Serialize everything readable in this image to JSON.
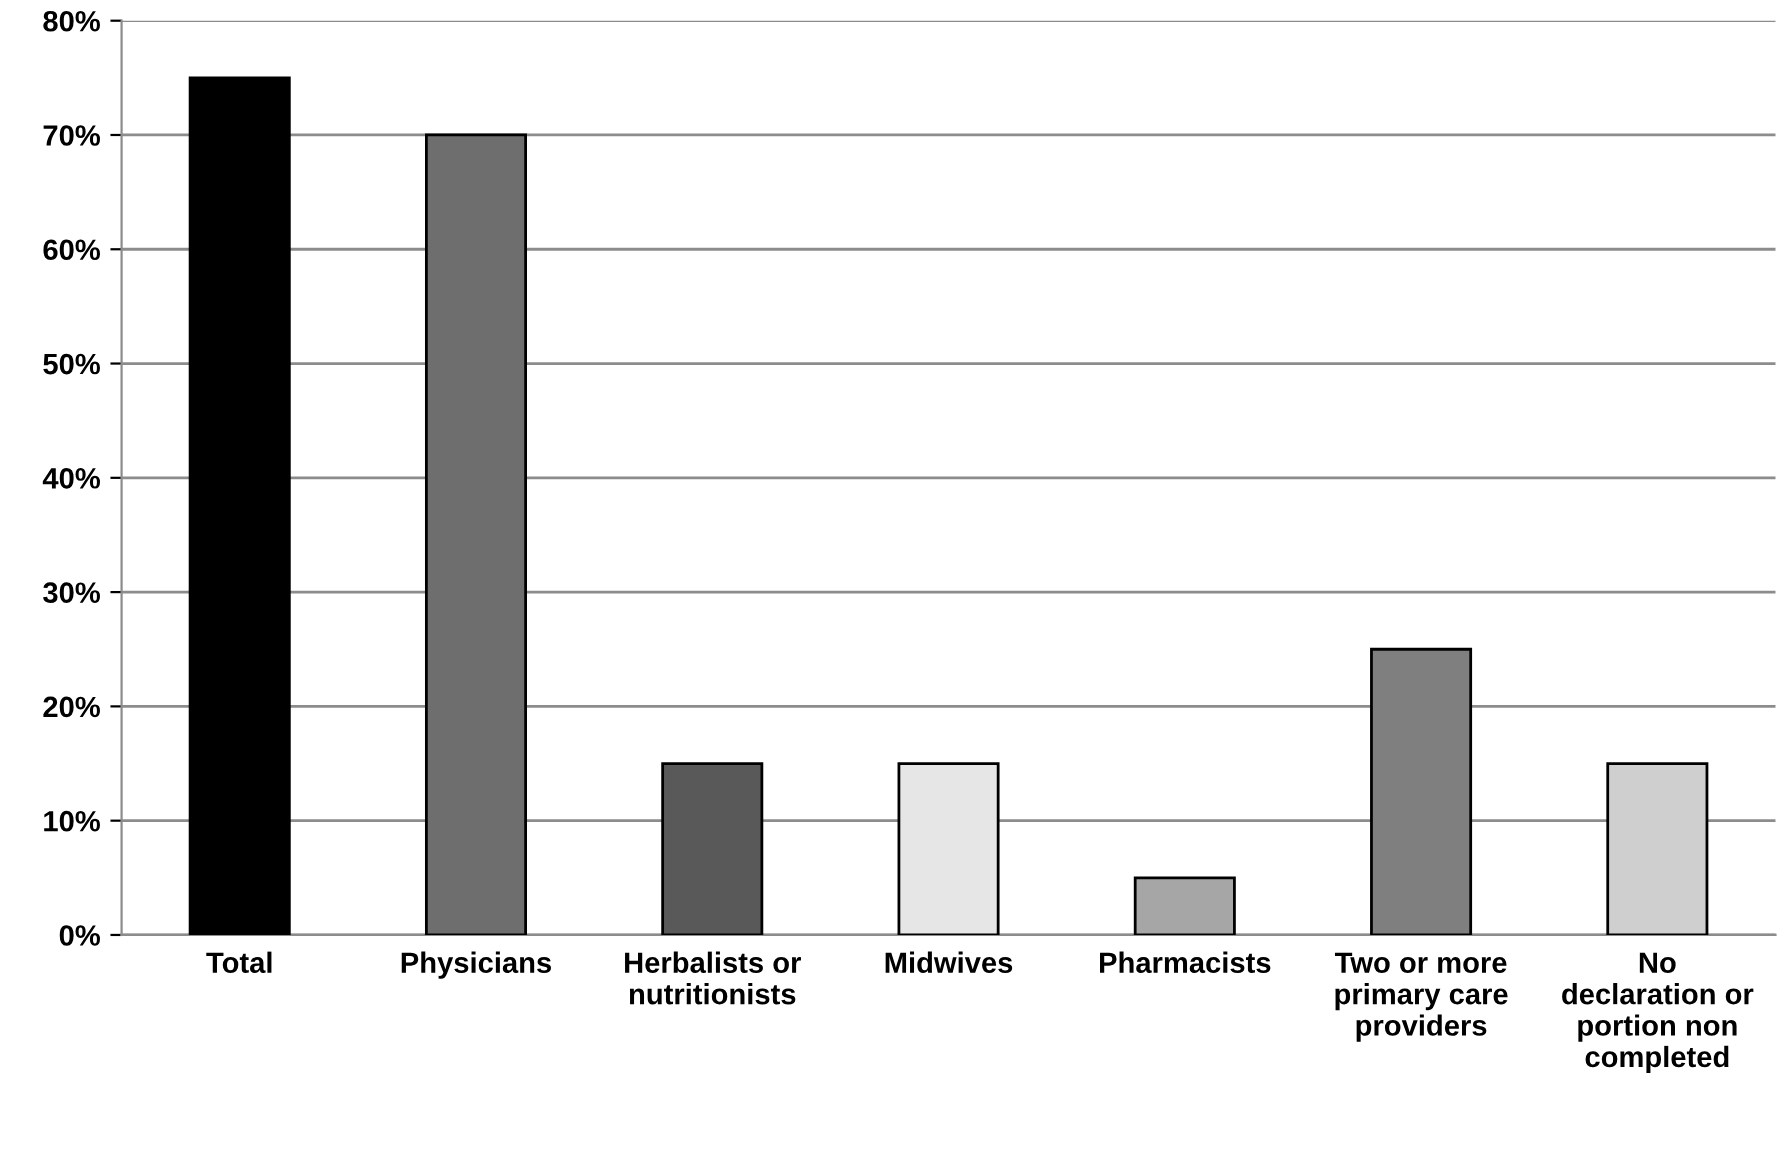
{
  "chart_data": {
    "type": "bar",
    "categories": [
      "Total",
      "Physicians",
      "Herbalists or\nnutritionists",
      "Midwives",
      "Pharmacists",
      "Two or more\nprimary care\nproviders",
      "No\ndeclaration or\nportion non\ncompleted"
    ],
    "values": [
      75,
      70,
      15,
      15,
      5,
      25,
      15
    ],
    "colors": [
      "#000000",
      "#6e6e6e",
      "#595959",
      "#e6e6e6",
      "#a6a6a6",
      "#7f7f7f",
      "#cfcfcf"
    ],
    "ylim": [
      0,
      80
    ],
    "yticks": [
      {
        "value": 0,
        "label": "0%"
      },
      {
        "value": 10,
        "label": "10%"
      },
      {
        "value": 20,
        "label": "20%"
      },
      {
        "value": 30,
        "label": "30%"
      },
      {
        "value": 40,
        "label": "40%"
      },
      {
        "value": 50,
        "label": "50%"
      },
      {
        "value": 60,
        "label": "60%"
      },
      {
        "value": 70,
        "label": "70%"
      },
      {
        "value": 80,
        "label": "80%"
      }
    ],
    "grid": "y"
  }
}
